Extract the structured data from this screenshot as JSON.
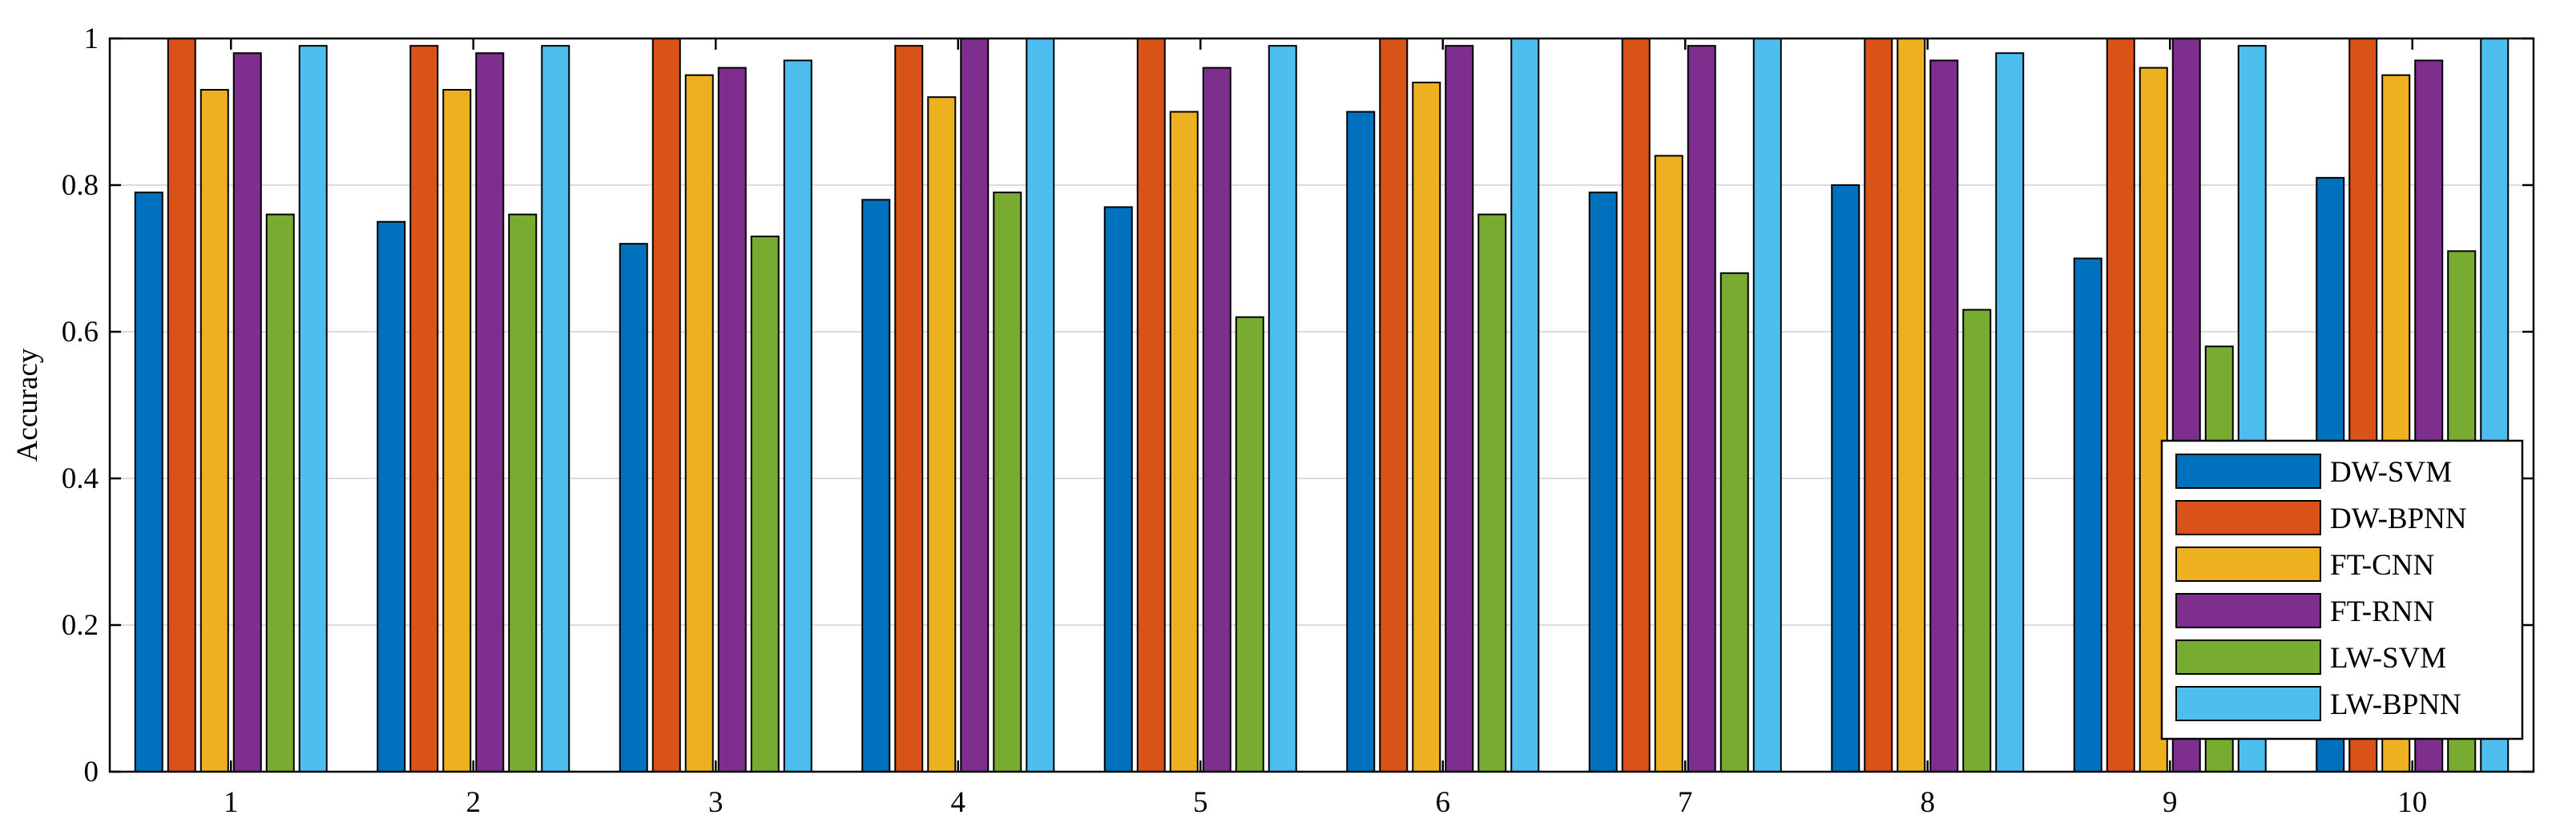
{
  "chart_data": {
    "type": "bar",
    "title": "",
    "xlabel": "",
    "ylabel": "Accuracy",
    "ylim": [
      0,
      1
    ],
    "yticks": [
      0,
      0.2,
      0.4,
      0.6,
      0.8,
      1
    ],
    "ytick_labels": [
      "0",
      "0.2",
      "0.4",
      "0.6",
      "0.8",
      "1"
    ],
    "grid": "horizontal",
    "legend_position": "bottom-right",
    "categories": [
      "1",
      "2",
      "3",
      "4",
      "5",
      "6",
      "7",
      "8",
      "9",
      "10"
    ],
    "series": [
      {
        "name": "DW-SVM",
        "color": "#0072BD",
        "values": [
          0.79,
          0.75,
          0.72,
          0.78,
          0.77,
          0.9,
          0.79,
          0.8,
          0.7,
          0.81
        ]
      },
      {
        "name": "DW-BPNN",
        "color": "#D95319",
        "values": [
          1.0,
          0.99,
          1.0,
          0.99,
          1.0,
          1.0,
          1.0,
          1.0,
          1.0,
          1.0
        ]
      },
      {
        "name": "FT-CNN",
        "color": "#EDB120",
        "values": [
          0.93,
          0.93,
          0.95,
          0.92,
          0.9,
          0.94,
          0.84,
          1.0,
          0.96,
          0.95
        ]
      },
      {
        "name": "FT-RNN",
        "color": "#7E2F8E",
        "values": [
          0.98,
          0.98,
          0.96,
          1.0,
          0.96,
          0.99,
          0.99,
          0.97,
          1.0,
          0.97
        ]
      },
      {
        "name": "LW-SVM",
        "color": "#77AC30",
        "values": [
          0.76,
          0.76,
          0.73,
          0.79,
          0.62,
          0.76,
          0.68,
          0.63,
          0.58,
          0.71
        ]
      },
      {
        "name": "LW-BPNN",
        "color": "#4DBEEE",
        "values": [
          0.99,
          0.99,
          0.97,
          1.0,
          0.99,
          1.0,
          1.0,
          0.98,
          0.99,
          1.0
        ]
      }
    ]
  }
}
